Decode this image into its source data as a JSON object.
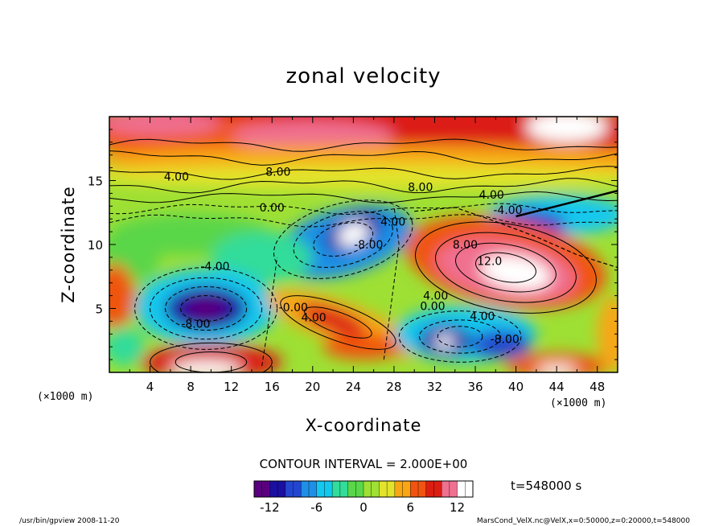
{
  "chart_data": {
    "type": "heatmap",
    "title": "zonal velocity",
    "xlabel": "X-coordinate",
    "ylabel": "Z-coordinate",
    "x_unit_left": "(×1000 m)",
    "x_unit_right": "(×1000 m)",
    "xlim": [
      0,
      50
    ],
    "ylim": [
      0,
      20
    ],
    "xticks": [
      4,
      8,
      12,
      16,
      20,
      24,
      28,
      32,
      36,
      40,
      44,
      48
    ],
    "yticks": [
      5,
      10,
      15
    ],
    "contour_interval_text": "CONTOUR INTERVAL = 2.000E+00",
    "time_text": "t=548000 s",
    "footer_left": "/usr/bin/gpview  2008-11-20",
    "footer_right": "MarsCond_VelX.nc@VelX,x=0:50000,z=0:20000,t=548000",
    "colorbar": {
      "min": -14,
      "max": 14,
      "ticks": [
        -12,
        -6,
        0,
        6,
        12
      ],
      "colors": [
        "#5a007f",
        "#1a0fa0",
        "#2346d0",
        "#1f8fe6",
        "#12c8ee",
        "#32dc9a",
        "#5ad64a",
        "#9ee034",
        "#e3e32c",
        "#f8a614",
        "#f05410",
        "#dc1d12",
        "#f07090",
        "#ffffff"
      ]
    },
    "contour_labels": [
      {
        "text": "4.00",
        "x": 6.6,
        "z": 15.3
      },
      {
        "text": "8.00",
        "x": 16.6,
        "z": 15.7
      },
      {
        "text": "8.00",
        "x": 30.6,
        "z": 14.5
      },
      {
        "text": "4.00",
        "x": 37.6,
        "z": 13.9
      },
      {
        "text": "0.00",
        "x": 16.0,
        "z": 12.9
      },
      {
        "text": "-4.00",
        "x": 39.2,
        "z": 12.7
      },
      {
        "text": "4.00",
        "x": 27.9,
        "z": 11.8
      },
      {
        "text": "-8.00",
        "x": 25.5,
        "z": 10.0
      },
      {
        "text": "8.00",
        "x": 35.0,
        "z": 10.0
      },
      {
        "text": "12.0",
        "x": 37.4,
        "z": 8.7
      },
      {
        "text": "-4.00",
        "x": 10.4,
        "z": 8.3
      },
      {
        "text": "4.00",
        "x": 32.1,
        "z": 6.0
      },
      {
        "text": "0.00",
        "x": 31.8,
        "z": 5.2
      },
      {
        "text": "-0.00",
        "x": 18.1,
        "z": 5.1
      },
      {
        "text": "4.00",
        "x": 20.1,
        "z": 4.3
      },
      {
        "text": "4.00",
        "x": 36.7,
        "z": 4.4
      },
      {
        "text": "-8.00",
        "x": 8.5,
        "z": 3.8
      },
      {
        "text": "-8.00",
        "x": 38.9,
        "z": 2.6
      }
    ]
  }
}
